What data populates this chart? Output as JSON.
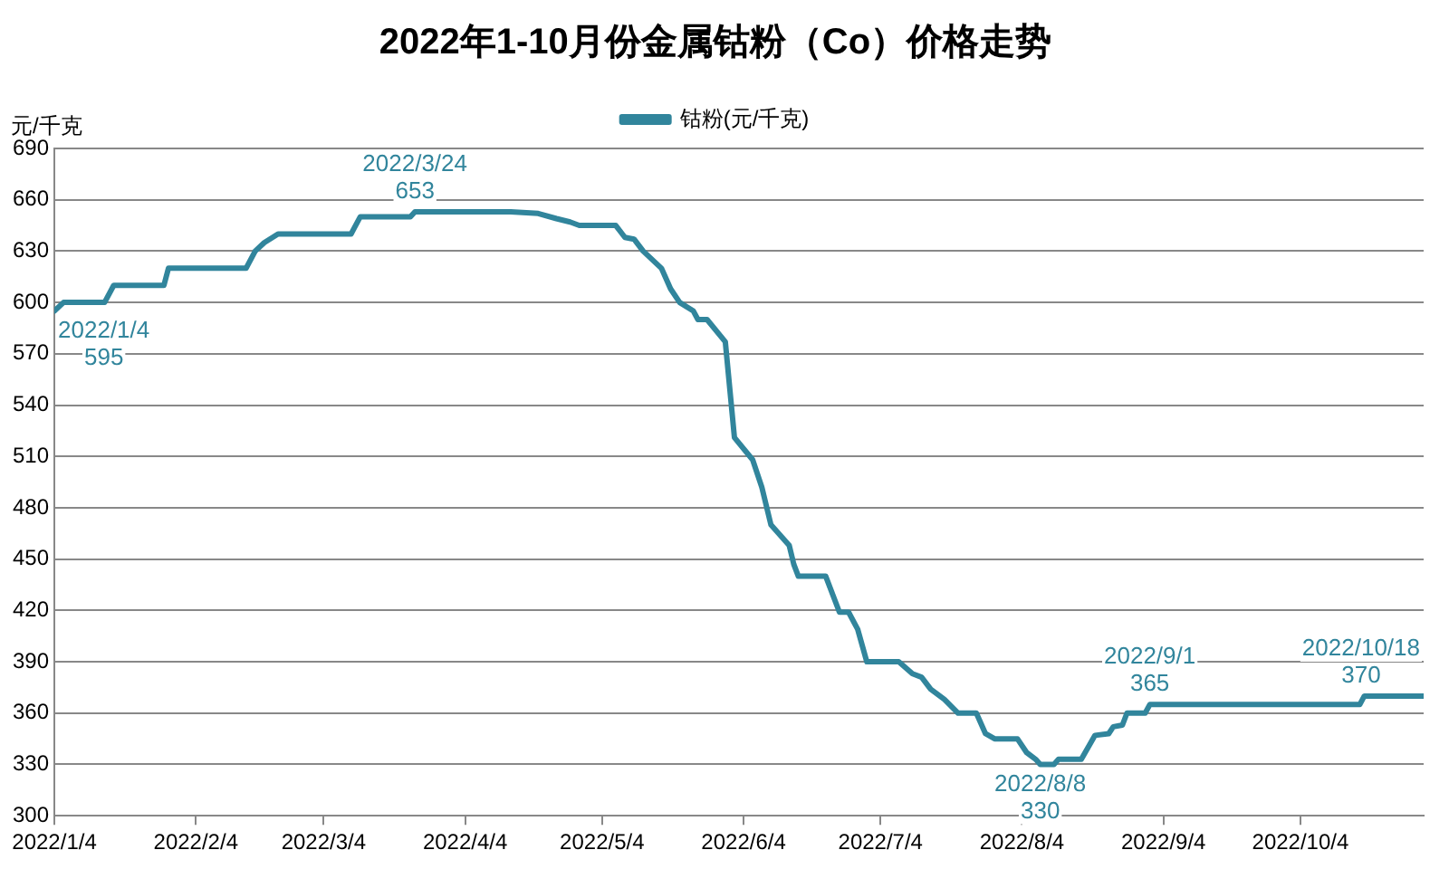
{
  "chart_data": {
    "type": "line",
    "title": "2022年1-10月份金属钴粉（Co）价格走势",
    "ylabel": "元/千克",
    "x": [
      "2022-01-04",
      "2022-01-06",
      "2022-01-15",
      "2022-01-17",
      "2022-01-28",
      "2022-01-29",
      "2022-02-15",
      "2022-02-17",
      "2022-02-19",
      "2022-02-22",
      "2022-03-10",
      "2022-03-12",
      "2022-03-23",
      "2022-03-24",
      "2022-04-14",
      "2022-04-20",
      "2022-04-24",
      "2022-04-27",
      "2022-04-29",
      "2022-05-07",
      "2022-05-09",
      "2022-05-11",
      "2022-05-13",
      "2022-05-15",
      "2022-05-17",
      "2022-05-19",
      "2022-05-21",
      "2022-05-24",
      "2022-05-25",
      "2022-05-27",
      "2022-05-31",
      "2022-06-02",
      "2022-06-06",
      "2022-06-08",
      "2022-06-10",
      "2022-06-14",
      "2022-06-15",
      "2022-06-16",
      "2022-06-22",
      "2022-06-25",
      "2022-06-27",
      "2022-06-29",
      "2022-07-01",
      "2022-07-08",
      "2022-07-11",
      "2022-07-13",
      "2022-07-15",
      "2022-07-18",
      "2022-07-21",
      "2022-07-25",
      "2022-07-27",
      "2022-07-29",
      "2022-08-03",
      "2022-08-05",
      "2022-08-07",
      "2022-08-08",
      "2022-08-11",
      "2022-08-12",
      "2022-08-17",
      "2022-08-20",
      "2022-08-23",
      "2022-08-24",
      "2022-08-26",
      "2022-08-27",
      "2022-08-31",
      "2022-09-01",
      "2022-10-17",
      "2022-10-18",
      "2022-10-31"
    ],
    "series": [
      {
        "name": "钴粉(元/千克)",
        "color": "#31859c",
        "values": [
          595,
          600,
          600,
          610,
          610,
          620,
          620,
          630,
          635,
          640,
          640,
          650,
          650,
          653,
          653,
          652,
          649,
          647,
          645,
          645,
          638,
          637,
          630,
          625,
          620,
          608,
          600,
          595,
          590,
          590,
          577,
          521,
          508,
          492,
          470,
          458,
          447,
          440,
          440,
          419,
          419,
          409,
          390,
          390,
          383,
          381,
          374,
          368,
          360,
          360,
          348,
          345,
          345,
          337,
          333,
          330,
          330,
          333,
          333,
          347,
          348,
          352,
          353,
          360,
          360,
          365,
          365,
          370,
          370
        ]
      }
    ],
    "xlim": [
      "2022-01-04",
      "2022-10-31"
    ],
    "xticks": [
      {
        "value": "2022-01-04",
        "label": "2022/1/4"
      },
      {
        "value": "2022-02-04",
        "label": "2022/2/4"
      },
      {
        "value": "2022-03-04",
        "label": "2022/3/4"
      },
      {
        "value": "2022-04-04",
        "label": "2022/4/4"
      },
      {
        "value": "2022-05-04",
        "label": "2022/5/4"
      },
      {
        "value": "2022-06-04",
        "label": "2022/6/4"
      },
      {
        "value": "2022-07-04",
        "label": "2022/7/4"
      },
      {
        "value": "2022-08-04",
        "label": "2022/8/4"
      },
      {
        "value": "2022-09-04",
        "label": "2022/9/4"
      },
      {
        "value": "2022-10-04",
        "label": "2022/10/4"
      }
    ],
    "ylim": [
      300,
      690
    ],
    "yticks": [
      300,
      330,
      360,
      390,
      420,
      450,
      480,
      510,
      540,
      570,
      600,
      630,
      660,
      690
    ],
    "grid": "y",
    "legend": "top",
    "marker": "none",
    "line_style": "solid",
    "annotations": [
      {
        "text": "2022/1/4\n595",
        "x": "2022-01-04",
        "y": 595
      },
      {
        "text": "2022/3/24\n653",
        "x": "2022-03-24",
        "y": 653
      },
      {
        "text": "2022/8/8\n330",
        "x": "2022-08-08",
        "y": 330
      },
      {
        "text": "2022/9/1\n365",
        "x": "2022-09-01",
        "y": 365
      },
      {
        "text": "2022/10/18\n370",
        "x": "2022-10-18",
        "y": 370
      }
    ]
  }
}
